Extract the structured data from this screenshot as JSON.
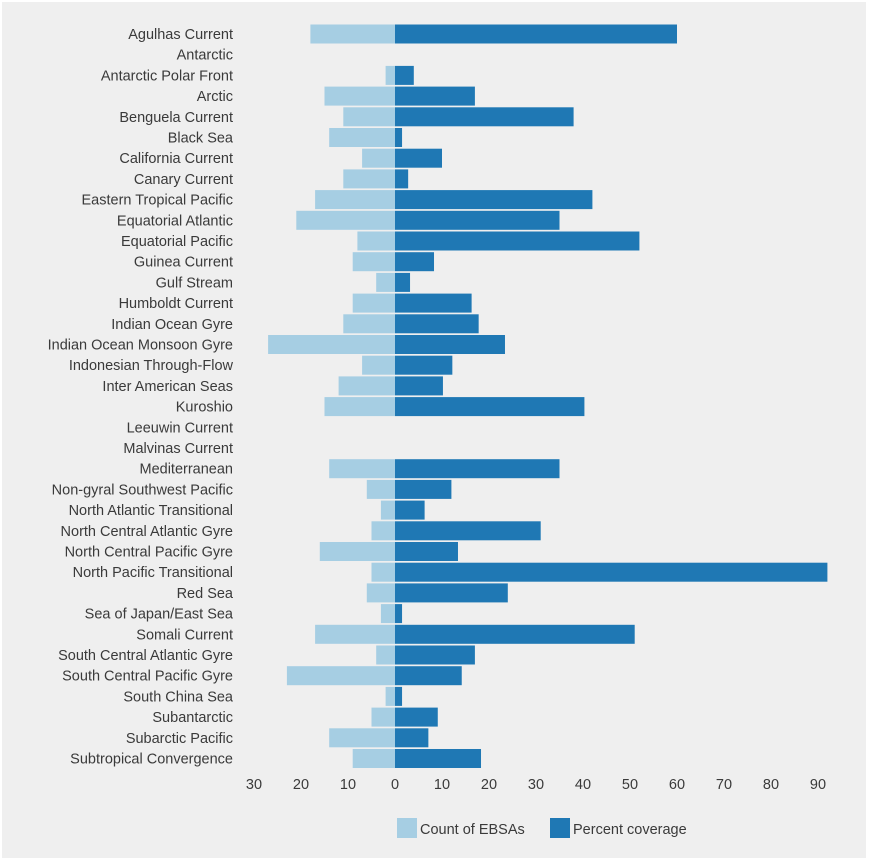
{
  "chart_data": {
    "type": "bar",
    "orientation": "horizontal",
    "layout": "diverging",
    "categories": [
      "Agulhas Current",
      "Antarctic",
      "Antarctic Polar Front",
      "Arctic",
      "Benguela Current",
      "Black Sea",
      "California Current",
      "Canary Current",
      "Eastern Tropical Pacific",
      "Equatorial Atlantic",
      "Equatorial Pacific",
      "Guinea Current",
      "Gulf Stream",
      "Humboldt Current",
      "Indian Ocean Gyre",
      "Indian Ocean Monsoon Gyre",
      "Indonesian Through-Flow",
      "Inter American Seas",
      "Kuroshio",
      "Leeuwin Current",
      "Malvinas Current",
      "Mediterranean",
      "Non-gyral Southwest Pacific",
      "North Atlantic Transitional",
      "North Central Atlantic Gyre",
      "North Central Pacific Gyre",
      "North Pacific Transitional",
      "Red Sea",
      "Sea of Japan/East Sea",
      "Somali Current",
      "South Central Atlantic Gyre",
      "South Central Pacific Gyre",
      "South China Sea",
      "Subantarctic",
      "Subarctic Pacific",
      "Subtropical Convergence"
    ],
    "series": [
      {
        "name": "Count of EBSAs",
        "color": "#a6cee3",
        "side": "left",
        "values": [
          18,
          0,
          2,
          15,
          11,
          14,
          7,
          11,
          17,
          21,
          8,
          9,
          4,
          9,
          11,
          27,
          7,
          12,
          15,
          0,
          0,
          14,
          6,
          3,
          5,
          16,
          5,
          6,
          3,
          17,
          4,
          23,
          2,
          5,
          14,
          9
        ]
      },
      {
        "name": "Percent coverage",
        "color": "#1f78b4",
        "side": "right",
        "values": [
          60,
          0,
          4,
          17,
          38,
          1.5,
          10,
          2.8,
          42,
          35,
          52,
          8.3,
          3.2,
          16.3,
          17.8,
          23.4,
          12.2,
          10.2,
          40.3,
          0,
          0,
          35,
          12,
          6.3,
          31,
          13.4,
          92,
          24,
          1.5,
          51,
          17,
          14.2,
          1.5,
          9.1,
          7.1,
          18.3
        ]
      }
    ],
    "x_ticks": [
      "30",
      "20",
      "10",
      "0",
      "10",
      "20",
      "30",
      "40",
      "50",
      "60",
      "70",
      "80",
      "90"
    ],
    "xlim": [
      -30,
      92
    ],
    "grid": false,
    "legend": "bottom-center",
    "background": "#efefef"
  }
}
